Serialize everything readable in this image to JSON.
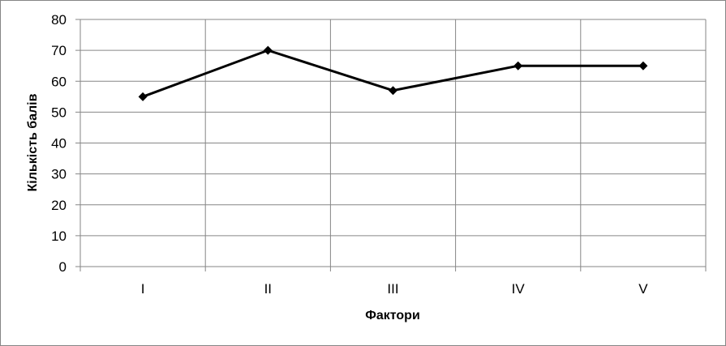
{
  "chart_data": {
    "type": "line",
    "title": "",
    "xlabel": "Фактори",
    "ylabel": "Кількість балів",
    "categories": [
      "I",
      "II",
      "III",
      "IV",
      "V"
    ],
    "series": [
      {
        "values": [
          55,
          70,
          57,
          65,
          65
        ]
      }
    ],
    "ylim": [
      0,
      80
    ],
    "yticks": [
      0,
      10,
      20,
      30,
      40,
      50,
      60,
      70,
      80
    ],
    "grid": {
      "horizontal": true,
      "vertical": true
    },
    "legend": "none",
    "line_color": "#000000",
    "marker": "diamond",
    "grid_color": "#868686"
  }
}
